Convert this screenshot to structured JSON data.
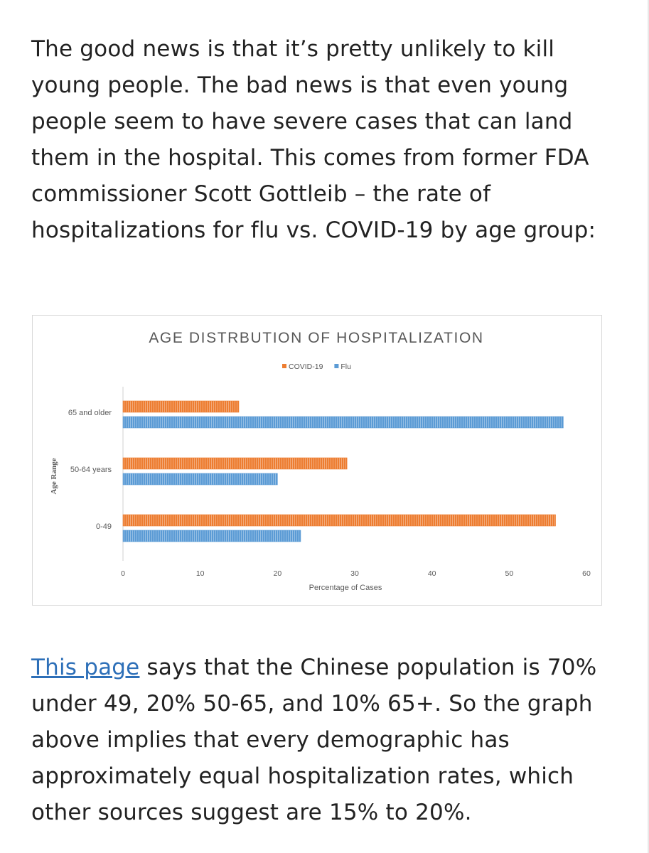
{
  "article": {
    "paragraph1": "The good news is that it’s pretty unlikely to kill young people. The bad news is that even young people seem to have severe cases that can land them in the hospital. This comes from former FDA commissioner Scott Gottleib – the rate of hospitalizations for flu vs. COVID-19 by age group:",
    "link_text": "This page",
    "paragraph2_rest": " says that the Chinese population is 70% under 49, 20% 50-65, and 10% 65+. So the graph above implies that every demographic has approximately equal hospitalization rates, which other sources suggest are 15% to 20%."
  },
  "chart_data": {
    "type": "bar",
    "orientation": "horizontal",
    "title": "AGE DISTRBUTION OF HOSPITALIZATION",
    "xlabel": "Percentage of Cases",
    "ylabel": "Age Range",
    "xlim": [
      0,
      60
    ],
    "xticks": [
      "0",
      "10",
      "20",
      "30",
      "40",
      "50",
      "60"
    ],
    "categories": [
      "65 and older",
      "50-64 years",
      "0-49"
    ],
    "series": [
      {
        "name": "COVID-19",
        "color": "#ed7d31",
        "values": [
          15,
          29,
          56
        ]
      },
      {
        "name": "Flu",
        "color": "#5b9bd5",
        "values": [
          57,
          20,
          23
        ]
      }
    ],
    "legend": "top-center",
    "grid": false
  }
}
